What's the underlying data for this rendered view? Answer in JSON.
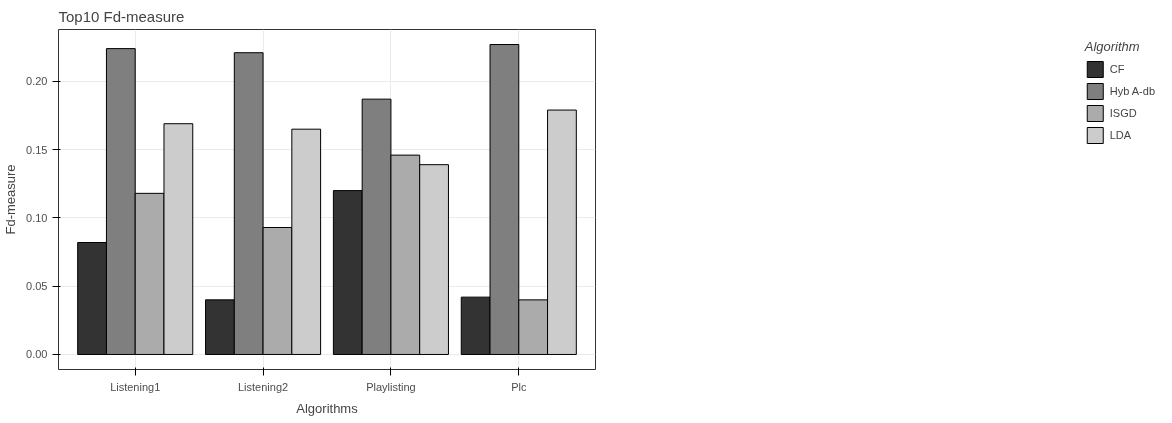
{
  "chart_data": {
    "type": "bar",
    "title": "Top10 Fd-measure",
    "xlabel": "Algorithms",
    "ylabel": "Fd-measure",
    "legend_title": "Algorithm",
    "categories": [
      "Listening1",
      "Listening2",
      "Playlisting",
      "Plc"
    ],
    "series": [
      {
        "name": "CF",
        "color": "#333333",
        "values": [
          0.082,
          0.04,
          0.12,
          0.042
        ]
      },
      {
        "name": "Hyb A-db",
        "color": "#7f7f7f",
        "values": [
          0.224,
          0.221,
          0.187,
          0.227
        ]
      },
      {
        "name": "ISGD",
        "color": "#ababab",
        "values": [
          0.118,
          0.093,
          0.146,
          0.04
        ]
      },
      {
        "name": "LDA",
        "color": "#cccccc",
        "values": [
          0.169,
          0.165,
          0.139,
          0.179
        ]
      }
    ],
    "ylim": [
      -0.011,
      0.238
    ],
    "yticks": [
      {
        "value": 0,
        "label": "0.00"
      },
      0.05,
      {
        "value": 0.1,
        "label": "0.10"
      },
      0.15,
      {
        "value": 0.2,
        "label": "0.20"
      }
    ],
    "grid": true,
    "legend": "right"
  }
}
